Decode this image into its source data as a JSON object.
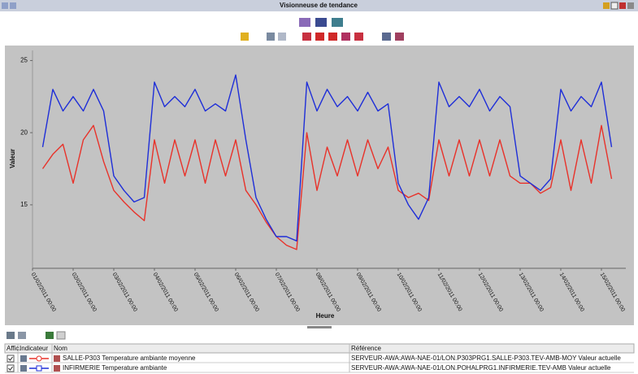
{
  "window": {
    "title": "Visionneuse de tendance"
  },
  "table": {
    "headers": [
      "Affic.",
      "Indicateur",
      "Nom",
      "Référence"
    ],
    "references": [
      "SERVEUR-AWA:AWA-NAE-01/LON.P303PRG1.SALLE-P303.TEV-AMB-MOY Valeur actuelle",
      "SERVEUR-AWA:AWA-NAE-01/LON.POHALPRG1.INFIRMERIE.TEV-AMB Valeur actuelle"
    ]
  },
  "chart_data": {
    "type": "line",
    "y_label": "Valeur",
    "x_label": "Heure",
    "xlim": [
      0,
      14.6
    ],
    "ylim": [
      10.6,
      25.7
    ],
    "yticks": [
      15,
      20,
      25
    ],
    "xticks": [
      {
        "value": 0,
        "label": "01/02/2011 00:00"
      },
      {
        "value": 1,
        "label": "02/02/2011 00:00"
      },
      {
        "value": 2,
        "label": "03/02/2011 00:00"
      },
      {
        "value": 3,
        "label": "04/02/2011 00:00"
      },
      {
        "value": 4,
        "label": "05/02/2011 00:00"
      },
      {
        "value": 5,
        "label": "06/02/2011 00:00"
      },
      {
        "value": 6,
        "label": "07/02/2011 00:00"
      },
      {
        "value": 7,
        "label": "08/02/2011 00:00"
      },
      {
        "value": 8,
        "label": "09/02/2011 00:00"
      },
      {
        "value": 9,
        "label": "10/02/2011 00:00"
      },
      {
        "value": 10,
        "label": "11/02/2011 00:00"
      },
      {
        "value": 11,
        "label": "12/02/2011 00:00"
      },
      {
        "value": 12,
        "label": "13/02/2011 00:00"
      },
      {
        "value": 13,
        "label": "14/02/2011 00:00"
      },
      {
        "value": 14,
        "label": "15/02/2011 00:00"
      }
    ],
    "grid": false,
    "x": [
      0.25,
      0.5,
      0.75,
      1,
      1.25,
      1.5,
      1.75,
      2,
      2.25,
      2.5,
      2.75,
      3,
      3.25,
      3.5,
      3.75,
      4,
      4.25,
      4.5,
      4.75,
      5,
      5.25,
      5.5,
      5.75,
      6,
      6.25,
      6.5,
      6.75,
      7,
      7.25,
      7.5,
      7.75,
      8,
      8.25,
      8.5,
      8.75,
      9,
      9.25,
      9.5,
      9.75,
      10,
      10.25,
      10.5,
      10.75,
      11,
      11.25,
      11.5,
      11.75,
      12,
      12.25,
      12.5,
      12.75,
      13,
      13.25,
      13.5,
      13.75,
      14,
      14.25
    ],
    "series": [
      {
        "name": "SALLE-P303 Temperature ambiante moyenne",
        "color": "#e8322a",
        "values": [
          17.5,
          18.5,
          19.2,
          16.5,
          19.5,
          20.5,
          18,
          16,
          15.2,
          14.5,
          13.9,
          19.5,
          16.5,
          19.5,
          17,
          19.5,
          16.5,
          19.5,
          17,
          19.5,
          16,
          15,
          13.8,
          12.8,
          12.2,
          11.9,
          20,
          16,
          19,
          17,
          19.5,
          17,
          19.5,
          17.5,
          19,
          16,
          15.5,
          15.8,
          15.3,
          19.5,
          17,
          19.5,
          17,
          19.5,
          17,
          19.5,
          17,
          16.5,
          16.5,
          15.8,
          16.2,
          19.5,
          16,
          19.5,
          16.5,
          20.5,
          16.8
        ]
      },
      {
        "name": "INFIRMERIE Temperature ambiante",
        "color": "#1e2ed8",
        "values": [
          19,
          23,
          21.5,
          22.5,
          21.5,
          23,
          21.5,
          17,
          16,
          15.2,
          15.5,
          23.5,
          21.8,
          22.5,
          21.8,
          23,
          21.5,
          22,
          21.5,
          24,
          19.5,
          15.5,
          14,
          12.8,
          12.8,
          12.5,
          23.5,
          21.5,
          23,
          21.8,
          22.5,
          21.5,
          22.8,
          21.5,
          22,
          16.5,
          15,
          14,
          15.5,
          23.5,
          21.8,
          22.5,
          21.8,
          23,
          21.5,
          22.5,
          21.8,
          17,
          16.5,
          16,
          16.8,
          23,
          21.5,
          22.5,
          21.8,
          23.5,
          19
        ]
      }
    ]
  }
}
